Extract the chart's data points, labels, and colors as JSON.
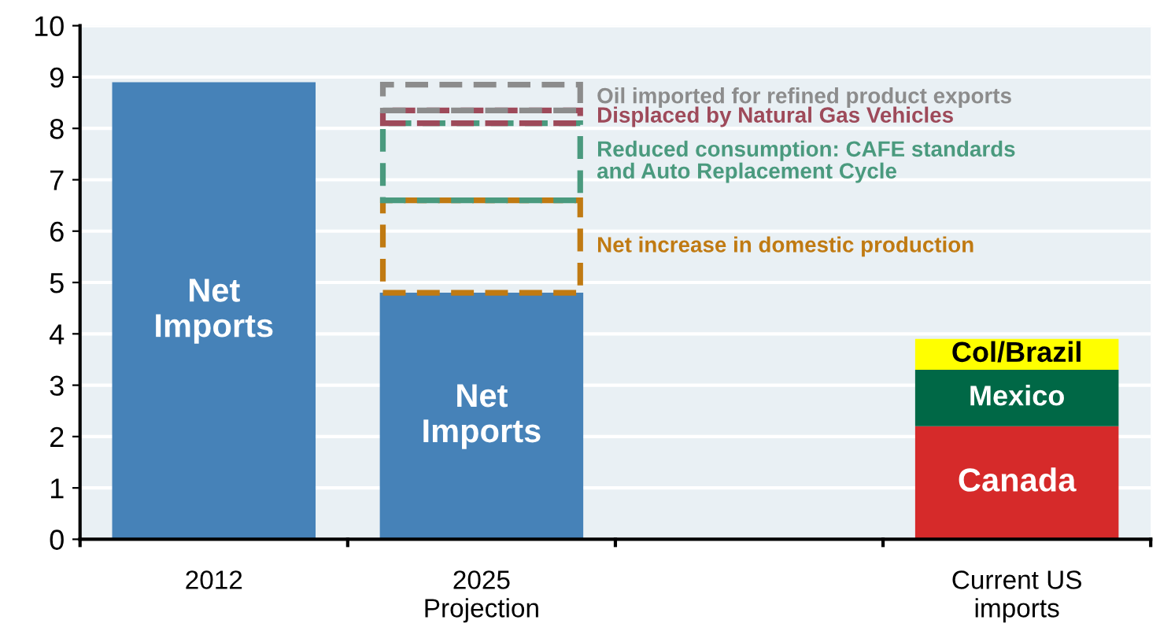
{
  "chart_data": {
    "type": "bar",
    "stacked": true,
    "categories": [
      "2012",
      "2025\nProjection",
      null,
      "Current US\nimports"
    ],
    "series": [
      {
        "name": "Net\nImports",
        "color": "#4682b8",
        "values": [
          8.9,
          4.8,
          null,
          null
        ]
      },
      {
        "name": "Net increase in domestic production",
        "color": "#c07a12",
        "values": [
          null,
          1.8,
          null,
          null
        ],
        "line_style": "dashed"
      },
      {
        "name": "Reduced consumption: CAFE standards\nand Auto Replacement Cycle",
        "color": "#4a9a7e",
        "values": [
          null,
          1.5,
          null,
          null
        ],
        "line_style": "dashed"
      },
      {
        "name": "Displaced by Natural Gas Vehicles",
        "color": "#9e4a5a",
        "values": [
          null,
          0.25,
          null,
          null
        ],
        "line_style": "dashed"
      },
      {
        "name": "Oil imported for refined product exports",
        "color": "#8c8c8c",
        "values": [
          null,
          0.5,
          null,
          null
        ],
        "line_style": "dashed"
      },
      {
        "name": "Canada",
        "color": "#d62a2a",
        "values": [
          null,
          null,
          null,
          2.2
        ]
      },
      {
        "name": "Mexico",
        "color": "#006846",
        "values": [
          null,
          null,
          null,
          1.1
        ]
      },
      {
        "name": "Col/Brazil",
        "color": "#ffff00",
        "values": [
          null,
          null,
          null,
          0.6
        ]
      }
    ],
    "ylim": [
      0,
      10
    ],
    "yticks": [
      0,
      1,
      2,
      3,
      4,
      5,
      6,
      7,
      8,
      9,
      10
    ],
    "grid": "y"
  }
}
